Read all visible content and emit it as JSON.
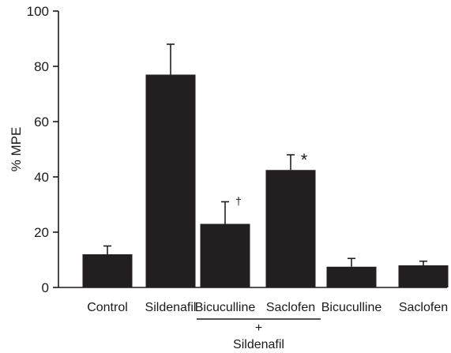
{
  "chart_data": {
    "type": "bar",
    "ylabel": "% MPE",
    "xlabel": "",
    "ylim": [
      0,
      100
    ],
    "yticks": [
      0,
      20,
      40,
      60,
      80,
      100
    ],
    "categories": [
      "Control",
      "Sildenafil",
      "Bicuculline",
      "Saclofen",
      "Bicuculline",
      "Saclofen"
    ],
    "values": [
      12,
      77,
      23,
      42.5,
      7.5,
      8
    ],
    "errors": [
      3,
      11,
      8,
      5.5,
      3,
      1.5
    ],
    "annotations": [
      {
        "category_index": 2,
        "text": "†"
      },
      {
        "category_index": 3,
        "text": "*"
      }
    ],
    "group_bracket": {
      "categories": [
        2,
        3
      ],
      "plus": "+",
      "label": "Sildenafil"
    },
    "colors": {
      "bar": "#231f20",
      "axis": "#1a1a1a"
    },
    "grid": false,
    "legend": "none"
  }
}
